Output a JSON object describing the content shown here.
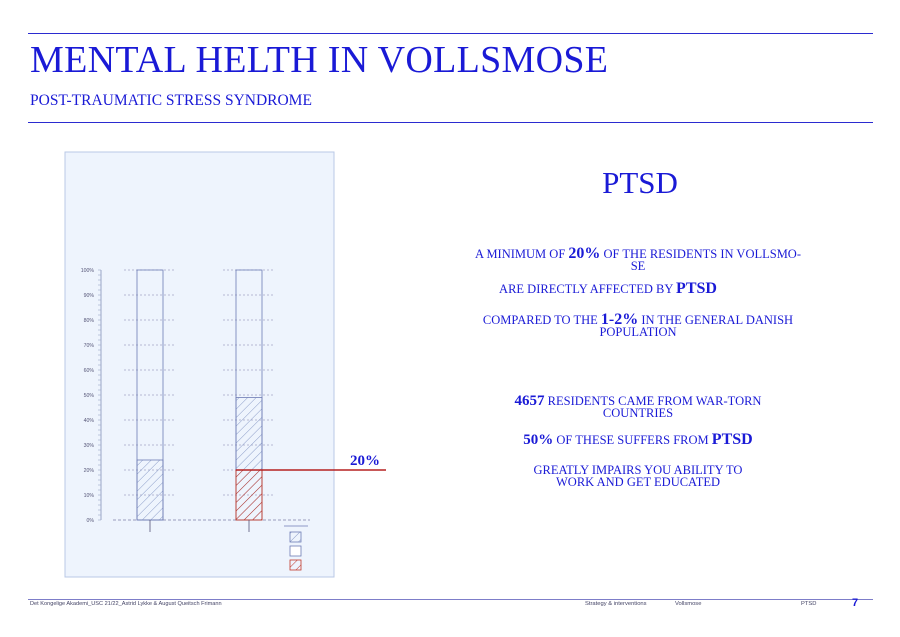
{
  "header": {
    "title": "MENTAL HELTH IN VOLLSMOSE",
    "subtitle": "POST-TRAUMATIC STRESS SYNDROME"
  },
  "colors": {
    "accent_blue": "#1a1ad6",
    "panel_bg": "#eef4fd",
    "hatch_blue": "#8a9cc8",
    "hatch_red": "#c0392b"
  },
  "chart_data": {
    "type": "bar",
    "ylim": [
      0,
      100
    ],
    "yticks": [
      "0%",
      "10%",
      "20%",
      "30%",
      "40%",
      "50%",
      "60%",
      "70%",
      "80%",
      "90%",
      "100%"
    ],
    "bars": [
      {
        "total": 100,
        "hatched_blue": 24,
        "hatched_red": 0
      },
      {
        "total": 100,
        "hatched_blue": 49,
        "hatched_red": 20
      }
    ],
    "threshold": {
      "value": 20,
      "label": "20%"
    },
    "legend_swatches": [
      "hatched-blue",
      "empty",
      "hatched-red"
    ],
    "grid": true
  },
  "right": {
    "heading": "PTSD",
    "lines": [
      {
        "pre": "A MINIMUM OF ",
        "bold": "20%",
        "post": " OF THE RESIDENTS IN VOLLSMO-",
        "line2": "SE"
      },
      {
        "pre": "ARE DIRECTLY AFFECTED BY ",
        "bold": "PTSD",
        "post": ""
      },
      {
        "pre": "COMPARED TO THE  ",
        "bold": "1-2%",
        "post": " IN THE GENERAL DANISH",
        "line2": "POPULATION"
      },
      {
        "pre": "",
        "bold": "4657",
        "post": " RESIDENTS CAME FROM WAR-TORN",
        "line2": "COUNTRIES"
      },
      {
        "pre": "",
        "bold": "50%",
        "post": " OF THESE SUFFERS FROM ",
        "bold2": "PTSD"
      },
      {
        "pre": "GREATLY IMPAIRS YOU ABILITY TO",
        "line2": "WORK AND GET EDUCATED"
      }
    ]
  },
  "footer": {
    "credit": "Det Kongelige Akademi_USC 21/22_Astrid Lykke & August Queitsch Frimann",
    "nav1": "Strategy & interventions",
    "nav2": "Vollsmose",
    "nav3": "PTSD",
    "page": "7"
  }
}
